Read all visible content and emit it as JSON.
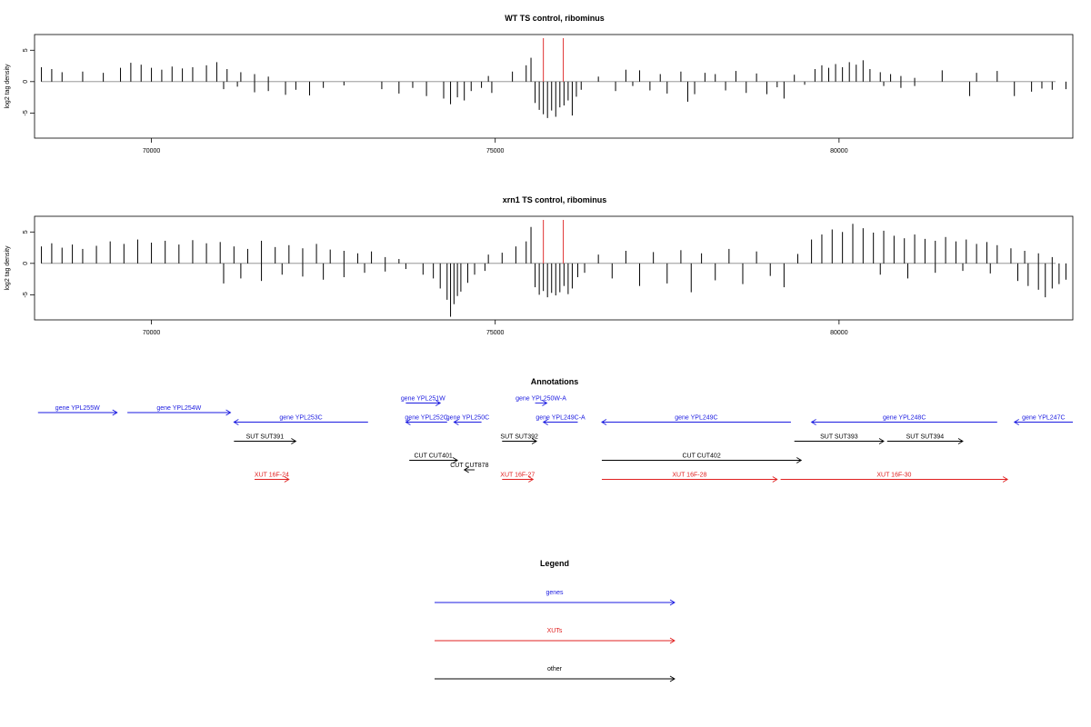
{
  "chart_data": [
    {
      "type": "bar",
      "title": "WT TS control, ribominus",
      "ylabel": "log2 tag density",
      "xlim": [
        68300,
        83400
      ],
      "ylim": [
        -9,
        7.5
      ],
      "x_ticks": [
        70000,
        75000,
        80000
      ],
      "y_ticks": [
        -5,
        0,
        5
      ],
      "markers": [
        {
          "x": 75700,
          "color": "#e03030"
        },
        {
          "x": 75990,
          "color": "#e03030"
        }
      ],
      "bars": [
        [
          68400,
          2.3
        ],
        [
          68550,
          2.0
        ],
        [
          68700,
          1.5
        ],
        [
          69000,
          1.6
        ],
        [
          69300,
          1.4
        ],
        [
          69550,
          2.2
        ],
        [
          69700,
          3.0
        ],
        [
          69850,
          2.7
        ],
        [
          70000,
          2.2
        ],
        [
          70150,
          1.9
        ],
        [
          70300,
          2.4
        ],
        [
          70450,
          2.1
        ],
        [
          70600,
          2.3
        ],
        [
          70800,
          2.6
        ],
        [
          70950,
          3.1
        ],
        [
          71100,
          2.0
        ],
        [
          71300,
          1.5
        ],
        [
          71500,
          1.2
        ],
        [
          71700,
          0.8
        ],
        [
          71050,
          -1.2
        ],
        [
          71250,
          -0.8
        ],
        [
          71500,
          -1.7
        ],
        [
          71700,
          -1.5
        ],
        [
          71950,
          -2.1
        ],
        [
          72100,
          -1.3
        ],
        [
          72300,
          -2.2
        ],
        [
          72500,
          -1.0
        ],
        [
          72800,
          -0.6
        ],
        [
          73350,
          -1.2
        ],
        [
          73600,
          -1.9
        ],
        [
          73800,
          -1.0
        ],
        [
          74000,
          -2.3
        ],
        [
          74250,
          -2.7
        ],
        [
          74350,
          -3.6
        ],
        [
          74450,
          -2.5
        ],
        [
          74550,
          -3.0
        ],
        [
          74650,
          -1.5
        ],
        [
          74800,
          -1.0
        ],
        [
          74950,
          -1.8
        ],
        [
          74900,
          0.9
        ],
        [
          75250,
          1.6
        ],
        [
          75450,
          2.6
        ],
        [
          75520,
          3.8
        ],
        [
          75580,
          -3.4
        ],
        [
          75640,
          -4.5
        ],
        [
          75700,
          -5.2
        ],
        [
          75760,
          -5.8
        ],
        [
          75820,
          -4.6
        ],
        [
          75880,
          -5.6
        ],
        [
          75940,
          -4.1
        ],
        [
          76000,
          -3.8
        ],
        [
          76060,
          -3.0
        ],
        [
          76120,
          -5.4
        ],
        [
          76180,
          -2.4
        ],
        [
          76250,
          -1.3
        ],
        [
          76500,
          0.8
        ],
        [
          76750,
          -1.5
        ],
        [
          76900,
          1.9
        ],
        [
          77000,
          -0.7
        ],
        [
          77100,
          1.8
        ],
        [
          77250,
          -1.4
        ],
        [
          77400,
          1.2
        ],
        [
          77500,
          -1.9
        ],
        [
          77700,
          1.6
        ],
        [
          77800,
          -3.2
        ],
        [
          77900,
          -2.0
        ],
        [
          78050,
          1.4
        ],
        [
          78200,
          1.2
        ],
        [
          78350,
          -1.4
        ],
        [
          78500,
          1.7
        ],
        [
          78650,
          -1.8
        ],
        [
          78800,
          1.3
        ],
        [
          78950,
          -2.0
        ],
        [
          79100,
          -0.9
        ],
        [
          79200,
          -2.7
        ],
        [
          79350,
          1.1
        ],
        [
          79500,
          -0.5
        ],
        [
          79650,
          2.0
        ],
        [
          79750,
          2.6
        ],
        [
          79850,
          2.2
        ],
        [
          79950,
          2.8
        ],
        [
          80050,
          2.3
        ],
        [
          80150,
          3.1
        ],
        [
          80250,
          2.7
        ],
        [
          80350,
          3.4
        ],
        [
          80450,
          2.0
        ],
        [
          80600,
          1.5
        ],
        [
          80750,
          1.2
        ],
        [
          80900,
          0.9
        ],
        [
          81100,
          0.6
        ],
        [
          80650,
          -0.7
        ],
        [
          80900,
          -1.0
        ],
        [
          81100,
          -0.7
        ],
        [
          81500,
          1.8
        ],
        [
          81900,
          -2.3
        ],
        [
          82000,
          1.4
        ],
        [
          82300,
          1.7
        ],
        [
          82550,
          -2.3
        ],
        [
          82800,
          -1.6
        ],
        [
          82950,
          -1.1
        ],
        [
          83100,
          -1.3
        ],
        [
          83300,
          -1.2
        ]
      ]
    },
    {
      "type": "bar",
      "title": "xrn1 TS control, ribominus",
      "ylabel": "log2 tag density",
      "xlim": [
        68300,
        83400
      ],
      "ylim": [
        -9,
        7.5
      ],
      "x_ticks": [
        70000,
        75000,
        80000
      ],
      "y_ticks": [
        -5,
        0,
        5
      ],
      "markers": [
        {
          "x": 75700,
          "color": "#e03030"
        },
        {
          "x": 75990,
          "color": "#e03030"
        }
      ],
      "bars": [
        [
          68400,
          2.7
        ],
        [
          68550,
          3.2
        ],
        [
          68700,
          2.5
        ],
        [
          68850,
          3.0
        ],
        [
          69000,
          2.3
        ],
        [
          69200,
          2.8
        ],
        [
          69400,
          3.5
        ],
        [
          69600,
          3.1
        ],
        [
          69800,
          3.8
        ],
        [
          70000,
          3.3
        ],
        [
          70200,
          3.6
        ],
        [
          70400,
          3.0
        ],
        [
          70600,
          3.7
        ],
        [
          70800,
          3.2
        ],
        [
          71000,
          3.4
        ],
        [
          71200,
          2.7
        ],
        [
          71400,
          2.3
        ],
        [
          71600,
          3.6
        ],
        [
          71800,
          2.6
        ],
        [
          72000,
          2.9
        ],
        [
          72200,
          2.4
        ],
        [
          72400,
          3.1
        ],
        [
          72600,
          2.2
        ],
        [
          72800,
          2.0
        ],
        [
          73000,
          1.6
        ],
        [
          73200,
          1.9
        ],
        [
          73400,
          1.0
        ],
        [
          73600,
          0.7
        ],
        [
          71050,
          -3.2
        ],
        [
          71300,
          -2.4
        ],
        [
          71600,
          -2.8
        ],
        [
          71900,
          -1.8
        ],
        [
          72200,
          -2.1
        ],
        [
          72500,
          -2.6
        ],
        [
          72800,
          -2.2
        ],
        [
          73100,
          -1.5
        ],
        [
          73400,
          -1.3
        ],
        [
          73700,
          -0.9
        ],
        [
          73950,
          -1.8
        ],
        [
          74100,
          -2.4
        ],
        [
          74200,
          -4.0
        ],
        [
          74300,
          -5.8
        ],
        [
          74350,
          -8.5
        ],
        [
          74400,
          -6.5
        ],
        [
          74450,
          -5.2
        ],
        [
          74500,
          -4.5
        ],
        [
          74600,
          -3.1
        ],
        [
          74700,
          -1.8
        ],
        [
          74850,
          -1.2
        ],
        [
          74900,
          1.4
        ],
        [
          75100,
          1.7
        ],
        [
          75300,
          2.7
        ],
        [
          75450,
          3.5
        ],
        [
          75520,
          5.8
        ],
        [
          75580,
          -3.8
        ],
        [
          75640,
          -5.0
        ],
        [
          75700,
          -4.4
        ],
        [
          75760,
          -5.4
        ],
        [
          75820,
          -4.7
        ],
        [
          75880,
          -5.1
        ],
        [
          75940,
          -4.6
        ],
        [
          76000,
          -3.6
        ],
        [
          76060,
          -4.9
        ],
        [
          76120,
          -4.0
        ],
        [
          76200,
          -2.2
        ],
        [
          76300,
          -1.5
        ],
        [
          76500,
          1.4
        ],
        [
          76700,
          -2.4
        ],
        [
          76900,
          2.0
        ],
        [
          77100,
          -3.6
        ],
        [
          77300,
          1.8
        ],
        [
          77500,
          -3.2
        ],
        [
          77700,
          2.1
        ],
        [
          77850,
          -4.6
        ],
        [
          78000,
          1.6
        ],
        [
          78200,
          -2.7
        ],
        [
          78400,
          2.3
        ],
        [
          78600,
          -3.3
        ],
        [
          78800,
          1.9
        ],
        [
          79000,
          -2.0
        ],
        [
          79200,
          -3.8
        ],
        [
          79400,
          1.5
        ],
        [
          79600,
          3.8
        ],
        [
          79750,
          4.6
        ],
        [
          79900,
          5.4
        ],
        [
          80050,
          5.0
        ],
        [
          80200,
          6.3
        ],
        [
          80350,
          5.6
        ],
        [
          80500,
          4.9
        ],
        [
          80650,
          5.2
        ],
        [
          80800,
          4.4
        ],
        [
          80950,
          4.0
        ],
        [
          81100,
          4.6
        ],
        [
          81250,
          3.9
        ],
        [
          81400,
          3.6
        ],
        [
          81550,
          4.2
        ],
        [
          81700,
          3.5
        ],
        [
          81850,
          3.8
        ],
        [
          82000,
          3.1
        ],
        [
          82150,
          3.4
        ],
        [
          82300,
          2.9
        ],
        [
          82500,
          2.4
        ],
        [
          82700,
          2.0
        ],
        [
          82900,
          1.6
        ],
        [
          83100,
          1.0
        ],
        [
          80600,
          -1.8
        ],
        [
          81000,
          -2.4
        ],
        [
          81400,
          -1.5
        ],
        [
          81800,
          -1.2
        ],
        [
          82200,
          -1.6
        ],
        [
          82600,
          -2.8
        ],
        [
          82750,
          -3.6
        ],
        [
          82900,
          -4.2
        ],
        [
          83000,
          -5.4
        ],
        [
          83100,
          -4.0
        ],
        [
          83200,
          -3.3
        ],
        [
          83300,
          -2.6
        ]
      ]
    },
    {
      "type": "annotation_track",
      "title": "Annotations",
      "xlim": [
        68300,
        83400
      ],
      "features": [
        {
          "label": "gene YPL255W",
          "start": 68350,
          "end": 69500,
          "strand": "+",
          "row": 0,
          "category": "genes"
        },
        {
          "label": "gene YPL254W",
          "start": 69650,
          "end": 71150,
          "strand": "+",
          "row": 0,
          "category": "genes"
        },
        {
          "label": "gene YPL253C",
          "start": 71200,
          "end": 73150,
          "strand": "-",
          "row": 1,
          "category": "genes"
        },
        {
          "label": "gene YPL251W",
          "start": 73700,
          "end": 74200,
          "strand": "+",
          "row": -1,
          "category": "genes"
        },
        {
          "label": "gene YPL252C",
          "start": 73700,
          "end": 74300,
          "strand": "-",
          "row": 1,
          "category": "genes"
        },
        {
          "label": "gene YPL250C",
          "start": 74400,
          "end": 74800,
          "strand": "-",
          "row": 1,
          "category": "genes"
        },
        {
          "label": "gene YPL250W-A",
          "start": 75580,
          "end": 75750,
          "strand": "+",
          "row": -1,
          "category": "genes"
        },
        {
          "label": "gene YPL249C-A",
          "start": 75700,
          "end": 76200,
          "strand": "-",
          "row": 1,
          "category": "genes"
        },
        {
          "label": "gene YPL249C",
          "start": 76550,
          "end": 79300,
          "strand": "-",
          "row": 1,
          "category": "genes"
        },
        {
          "label": "gene YPL248C",
          "start": 79600,
          "end": 82300,
          "strand": "-",
          "row": 1,
          "category": "genes"
        },
        {
          "label": "gene YPL247C",
          "start": 82550,
          "end": 83400,
          "strand": "-",
          "row": 1,
          "category": "genes"
        },
        {
          "label": "SUT SUT391",
          "start": 71200,
          "end": 72100,
          "strand": "+",
          "row": 3,
          "category": "other"
        },
        {
          "label": "SUT SUT392",
          "start": 75100,
          "end": 75600,
          "strand": "+",
          "row": 3,
          "category": "other"
        },
        {
          "label": "SUT SUT393",
          "start": 79350,
          "end": 80650,
          "strand": "+",
          "row": 3,
          "category": "other"
        },
        {
          "label": "SUT SUT394",
          "start": 80700,
          "end": 81800,
          "strand": "+",
          "row": 3,
          "category": "other"
        },
        {
          "label": "CUT CUT401",
          "start": 73750,
          "end": 74450,
          "strand": "+",
          "row": 5,
          "category": "other"
        },
        {
          "label": "CUT CUT402",
          "start": 76550,
          "end": 79450,
          "strand": "+",
          "row": 5,
          "category": "other"
        },
        {
          "label": "CUT CUT878",
          "start": 74550,
          "end": 74700,
          "strand": "-",
          "row": 6,
          "category": "other"
        },
        {
          "label": "XUT 16F-24",
          "start": 71500,
          "end": 72000,
          "strand": "+",
          "row": 7,
          "category": "XUTs"
        },
        {
          "label": "XUT 16F-27",
          "start": 75100,
          "end": 75550,
          "strand": "+",
          "row": 7,
          "category": "XUTs"
        },
        {
          "label": "XUT 16F-28",
          "start": 76550,
          "end": 79100,
          "strand": "+",
          "row": 7,
          "category": "XUTs"
        },
        {
          "label": "XUT 16F-30",
          "start": 79150,
          "end": 82450,
          "strand": "+",
          "row": 7,
          "category": "XUTs"
        }
      ]
    },
    {
      "type": "legend",
      "title": "Legend",
      "entries": [
        {
          "label": "genes",
          "color": "#1a1ae0"
        },
        {
          "label": "XUTs",
          "color": "#e02020"
        },
        {
          "label": "other",
          "color": "#000000"
        }
      ]
    }
  ]
}
